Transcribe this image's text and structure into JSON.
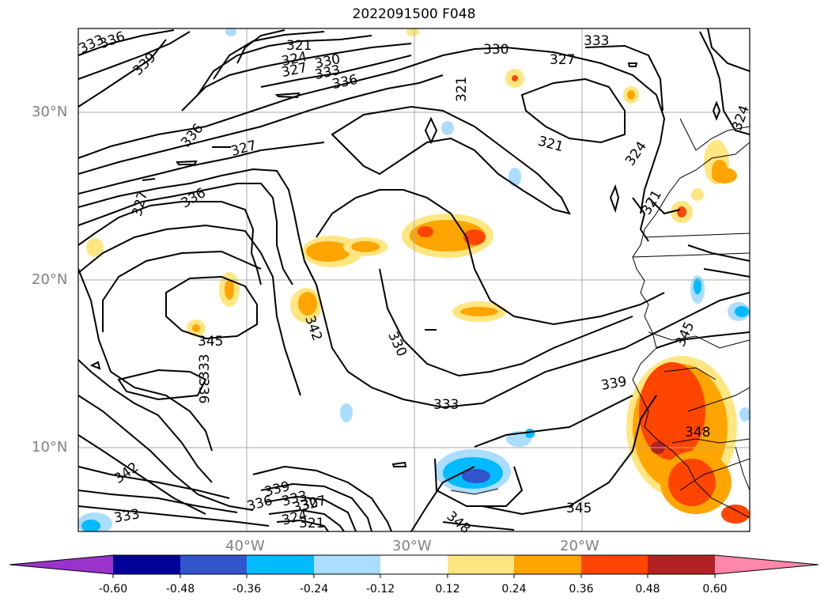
{
  "title": "2022091500 F048",
  "lat_labels": [
    "30°N",
    "20°N",
    "10°N"
  ],
  "lon_labels": [
    "40°W",
    "30°W",
    "20°W"
  ],
  "contour_labels": [
    "333",
    "336",
    "339",
    "321",
    "324",
    "327",
    "330",
    "333",
    "336",
    "330",
    "327",
    "333",
    "321",
    "324",
    "321",
    "321",
    "324",
    "336",
    "327",
    "336",
    "327",
    "345",
    "342",
    "330",
    "333",
    "339",
    "345",
    "348",
    "333",
    "336",
    "342",
    "339",
    "336",
    "333",
    "330",
    "327",
    "324",
    "321",
    "333",
    "345",
    "348"
  ],
  "colorbar": {
    "ticks": [
      "-0.60",
      "-0.48",
      "-0.36",
      "-0.24",
      "-0.12",
      "0.12",
      "0.24",
      "0.36",
      "0.48",
      "0.60"
    ],
    "colors": [
      "#9933cc",
      "#000099",
      "#3355cc",
      "#00bbff",
      "#aaddff",
      "#ffffff",
      "#ffe680",
      "#ffa500",
      "#ff4500",
      "#b22222",
      "#ff88aa"
    ]
  }
}
